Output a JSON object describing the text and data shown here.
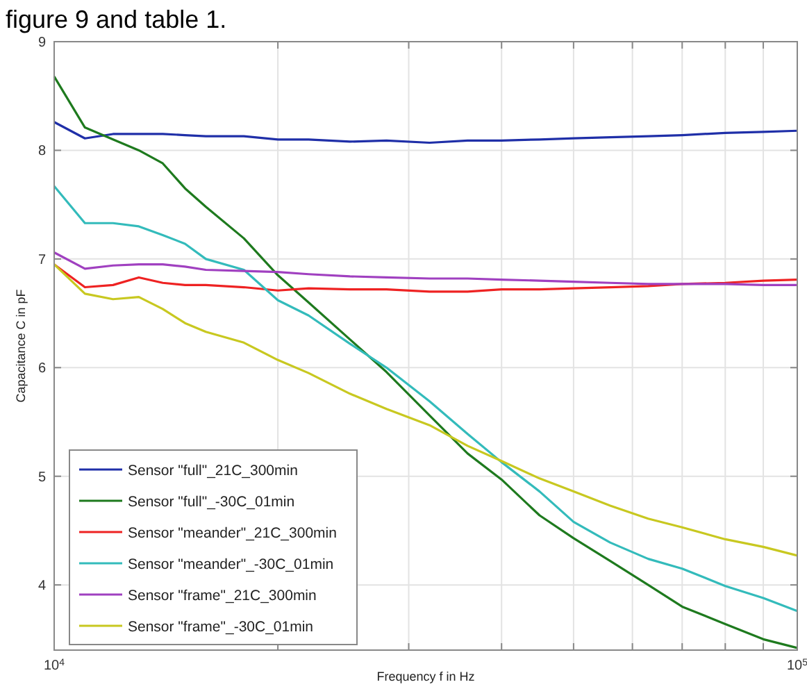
{
  "chart_data": {
    "type": "line",
    "xlabel": "Frequency f in Hz",
    "ylabel": "Capacitance C in pF",
    "annotations": [
      "figure 9 and table 1."
    ],
    "log": "x",
    "grid": true,
    "legend": "bottom left",
    "line_style": "solid",
    "marker": "none",
    "x": [
      10000,
      11000,
      12000,
      13000,
      14000,
      15000,
      16000,
      18000,
      20000,
      22000,
      25000,
      28000,
      32000,
      36000,
      40000,
      45000,
      50000,
      56000,
      63000,
      70000,
      80000,
      90000,
      100000
    ],
    "xlim": [
      10000,
      100000
    ],
    "xticks": [
      {
        "value": 10000,
        "label": "10$^{4}$"
      },
      {
        "value": 20000,
        "label": null
      },
      {
        "value": 30000,
        "label": null
      },
      {
        "value": 40000,
        "label": null
      },
      {
        "value": 50000,
        "label": null
      },
      {
        "value": 60000,
        "label": null
      },
      {
        "value": 70000,
        "label": null
      },
      {
        "value": 80000,
        "label": null
      },
      {
        "value": 90000,
        "label": null
      },
      {
        "value": 100000,
        "label": "10$^{5}$"
      }
    ],
    "ylim": [
      3.4,
      9
    ],
    "yticks": [
      4,
      5,
      6,
      7,
      8,
      9
    ],
    "series": [
      {
        "name": "Sensor \"full\"_21C_300min",
        "color": "#1f2fa8",
        "values": [
          8.26,
          8.11,
          8.15,
          8.15,
          8.15,
          8.14,
          8.13,
          8.13,
          8.1,
          8.1,
          8.08,
          8.09,
          8.07,
          8.09,
          8.09,
          8.1,
          8.11,
          8.12,
          8.13,
          8.14,
          8.16,
          8.17,
          8.18
        ]
      },
      {
        "name": "Sensor \"full\"_-30C_01min",
        "color": "#1e7a1e",
        "values": [
          8.68,
          8.21,
          8.1,
          8.0,
          7.88,
          7.65,
          7.48,
          7.19,
          6.85,
          6.6,
          6.26,
          5.96,
          5.56,
          5.21,
          4.97,
          4.64,
          4.43,
          4.22,
          4.0,
          3.8,
          3.64,
          3.5,
          3.42
        ]
      },
      {
        "name": "Sensor \"meander\"_21C_300min",
        "color": "#ee2222",
        "values": [
          6.95,
          6.74,
          6.76,
          6.83,
          6.78,
          6.76,
          6.76,
          6.74,
          6.71,
          6.73,
          6.72,
          6.72,
          6.7,
          6.7,
          6.72,
          6.72,
          6.73,
          6.74,
          6.75,
          6.77,
          6.78,
          6.8,
          6.81
        ]
      },
      {
        "name": "Sensor \"meander\"_-30C_01min",
        "color": "#33bbbb",
        "values": [
          7.67,
          7.33,
          7.33,
          7.3,
          7.22,
          7.14,
          7.0,
          6.9,
          6.62,
          6.48,
          6.22,
          6.0,
          5.69,
          5.39,
          5.13,
          4.86,
          4.58,
          4.39,
          4.24,
          4.15,
          3.99,
          3.88,
          3.76
        ]
      },
      {
        "name": "Sensor \"frame\"_21C_300min",
        "color": "#a040c0",
        "values": [
          7.06,
          6.91,
          6.94,
          6.95,
          6.95,
          6.93,
          6.9,
          6.89,
          6.88,
          6.86,
          6.84,
          6.83,
          6.82,
          6.82,
          6.81,
          6.8,
          6.79,
          6.78,
          6.77,
          6.77,
          6.77,
          6.76,
          6.76
        ]
      },
      {
        "name": "Sensor \"frame\"_-30C_01min",
        "color": "#c8c820",
        "values": [
          6.95,
          6.68,
          6.63,
          6.65,
          6.54,
          6.41,
          6.33,
          6.23,
          6.07,
          5.95,
          5.76,
          5.62,
          5.47,
          5.28,
          5.14,
          4.98,
          4.86,
          4.73,
          4.61,
          4.53,
          4.42,
          4.35,
          4.27
        ]
      }
    ]
  }
}
